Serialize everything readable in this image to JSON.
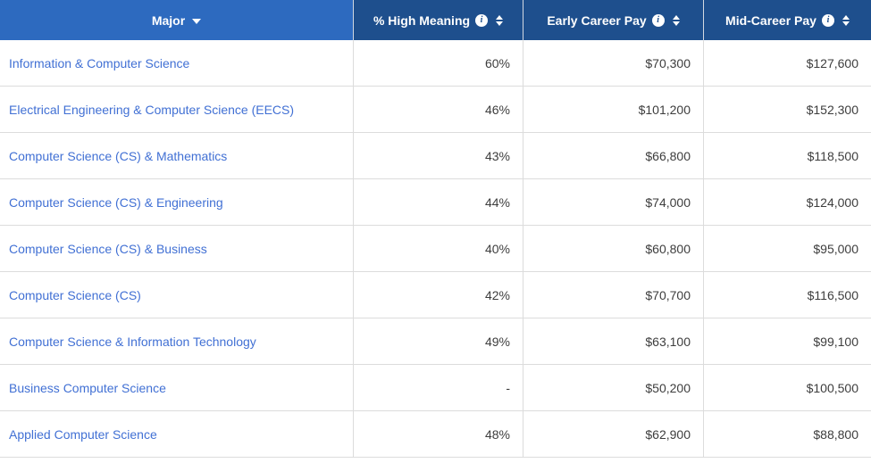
{
  "table": {
    "columns": [
      {
        "label": "Major",
        "sorted": "desc"
      },
      {
        "label": "% High Meaning",
        "has_info": true,
        "sortable": true
      },
      {
        "label": "Early Career Pay",
        "has_info": true,
        "sortable": true
      },
      {
        "label": "Mid-Career Pay",
        "has_info": true,
        "sortable": true
      }
    ],
    "rows": [
      {
        "major": "Information & Computer Science",
        "high_meaning": "60%",
        "early_career_pay": "$70,300",
        "mid_career_pay": "$127,600"
      },
      {
        "major": "Electrical Engineering & Computer Science (EECS)",
        "high_meaning": "46%",
        "early_career_pay": "$101,200",
        "mid_career_pay": "$152,300"
      },
      {
        "major": "Computer Science (CS) & Mathematics",
        "high_meaning": "43%",
        "early_career_pay": "$66,800",
        "mid_career_pay": "$118,500"
      },
      {
        "major": "Computer Science (CS) & Engineering",
        "high_meaning": "44%",
        "early_career_pay": "$74,000",
        "mid_career_pay": "$124,000"
      },
      {
        "major": "Computer Science (CS) & Business",
        "high_meaning": "40%",
        "early_career_pay": "$60,800",
        "mid_career_pay": "$95,000"
      },
      {
        "major": "Computer Science (CS)",
        "high_meaning": "42%",
        "early_career_pay": "$70,700",
        "mid_career_pay": "$116,500"
      },
      {
        "major": "Computer Science & Information Technology",
        "high_meaning": "49%",
        "early_career_pay": "$63,100",
        "mid_career_pay": "$99,100"
      },
      {
        "major": "Business Computer Science",
        "high_meaning": "-",
        "early_career_pay": "$50,200",
        "mid_career_pay": "$100,500"
      },
      {
        "major": "Applied Computer Science",
        "high_meaning": "48%",
        "early_career_pay": "$62,900",
        "mid_career_pay": "$88,800"
      }
    ]
  },
  "icons": {
    "info_glyph": "i"
  },
  "colors": {
    "header_major_bg": "#2d6abf",
    "header_dark_bg": "#1e4f8d",
    "link_blue": "#4170d4",
    "value_text": "#3d3d3d",
    "divider": "#dcdcdc"
  }
}
